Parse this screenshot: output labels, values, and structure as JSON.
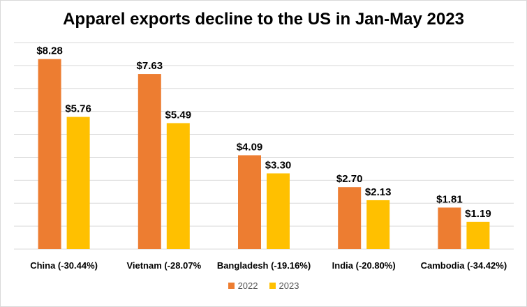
{
  "chart_data": {
    "type": "bar",
    "title": "Apparel exports decline to the US in Jan-May 2023",
    "categories": [
      "China (-30.44%)",
      "Vietnam (-28.07%",
      "Bangladesh (-19.16%)",
      "India (-20.80%)",
      "Cambodia (-34.42%)"
    ],
    "series": [
      {
        "name": "2022",
        "color": "#ED7D31",
        "values": [
          8.28,
          7.63,
          4.09,
          2.7,
          1.81
        ],
        "labels": [
          "$8.28",
          "$7.63",
          "$4.09",
          "$2.70",
          "$1.81"
        ]
      },
      {
        "name": "2023",
        "color": "#FFC000",
        "values": [
          5.76,
          5.49,
          3.3,
          2.13,
          1.19
        ],
        "labels": [
          "$5.76",
          "$5.49",
          "$3.30",
          "$2.13",
          "$1.19"
        ]
      }
    ],
    "xlabel": "",
    "ylabel": "",
    "ylim": [
      0,
      9
    ],
    "gridline_step": 1,
    "grid": true,
    "legend": "bottom"
  }
}
